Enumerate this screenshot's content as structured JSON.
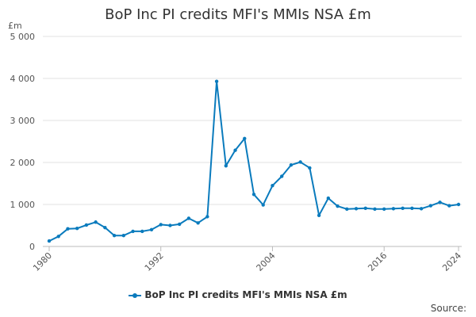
{
  "chart_data": {
    "type": "line",
    "title": "BoP Inc PI credits MFI's MMIs NSA £m",
    "ylabel": "£m",
    "xlabel": "",
    "ylim": [
      0,
      5000
    ],
    "xlim": [
      1980,
      2024
    ],
    "y_ticks": [
      0,
      1000,
      2000,
      3000,
      4000,
      5000
    ],
    "y_tick_labels": [
      "0",
      "1 000",
      "2 000",
      "3 000",
      "4 000",
      "5 000"
    ],
    "x_ticks": [
      1980,
      1992,
      2004,
      2016,
      2024
    ],
    "x_tick_labels": [
      "1980",
      "1992",
      "2004",
      "2016",
      "2024"
    ],
    "grid": "horizontal",
    "legend_position": "bottom",
    "color": "#0a7bbd",
    "series": [
      {
        "name": "BoP Inc PI credits MFI's MMIs NSA £m",
        "x": [
          1980,
          1981,
          1982,
          1983,
          1984,
          1985,
          1986,
          1987,
          1988,
          1989,
          1990,
          1991,
          1992,
          1993,
          1994,
          1995,
          1996,
          1997,
          1998,
          1999,
          2000,
          2001,
          2002,
          2003,
          2004,
          2005,
          2006,
          2007,
          2008,
          2009,
          2010,
          2011,
          2012,
          2013,
          2014,
          2015,
          2016,
          2017,
          2018,
          2019,
          2020,
          2021,
          2022,
          2023,
          2024
        ],
        "values": [
          130,
          240,
          420,
          430,
          510,
          580,
          450,
          260,
          260,
          360,
          360,
          400,
          520,
          500,
          530,
          670,
          560,
          710,
          3930,
          1920,
          2290,
          2570,
          1240,
          990,
          1450,
          1670,
          1940,
          2010,
          1870,
          740,
          1150,
          960,
          890,
          900,
          910,
          890,
          890,
          900,
          910,
          910,
          900,
          970,
          1050,
          970,
          1000
        ]
      }
    ]
  },
  "source_label": "Source:"
}
